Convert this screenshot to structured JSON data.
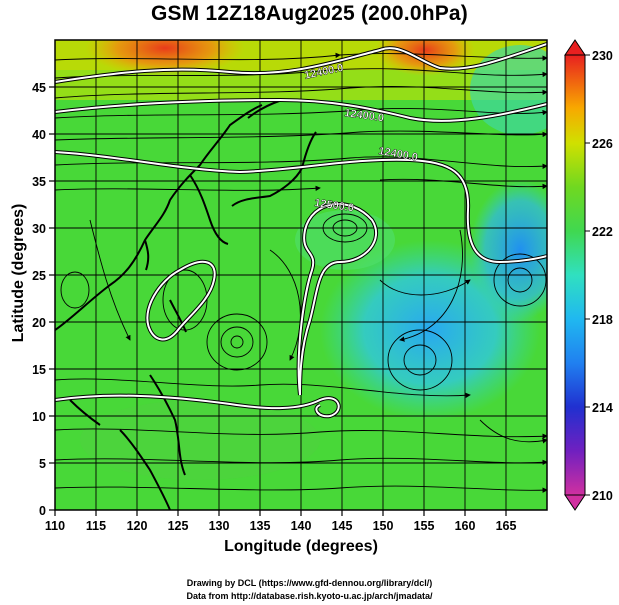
{
  "title": "GSM 12Z18Aug2025 (200.0hPa)",
  "ylabel": "Latitude  (degrees)",
  "xlabel": "Longitude (degrees)",
  "credit_line1": "Drawing by DCL (https://www.gfd-dennou.org/library/dcl/)",
  "credit_line2": "Data from http://database.rish.kyoto-u.ac.jp/arch/jmadata/",
  "map": {
    "projection": "equirectangular",
    "lon_range": [
      110,
      170
    ],
    "lat_range": [
      0,
      50
    ],
    "x_ticks": [
      "110",
      "115",
      "120",
      "125",
      "130",
      "135",
      "140",
      "145",
      "150",
      "155",
      "160",
      "165"
    ],
    "y_ticks": [
      "0",
      "5",
      "10",
      "15",
      "20",
      "25",
      "30",
      "35",
      "40",
      "45"
    ],
    "grid": true,
    "field": "temperature (shaded), geopotential height (contours), wind streamlines",
    "contour_labels": [
      "12400.0",
      "12400.0",
      "12400.0",
      "12500.0"
    ]
  },
  "colorbar": {
    "ticks": [
      "230",
      "226",
      "222",
      "218",
      "214",
      "210"
    ],
    "min": 210,
    "max": 230,
    "colors": [
      "#d030a0",
      "#3020c0",
      "#2080f0",
      "#30d8e0",
      "#40e060",
      "#50d030",
      "#b0e000",
      "#f8c000",
      "#f87000",
      "#e82020"
    ]
  }
}
